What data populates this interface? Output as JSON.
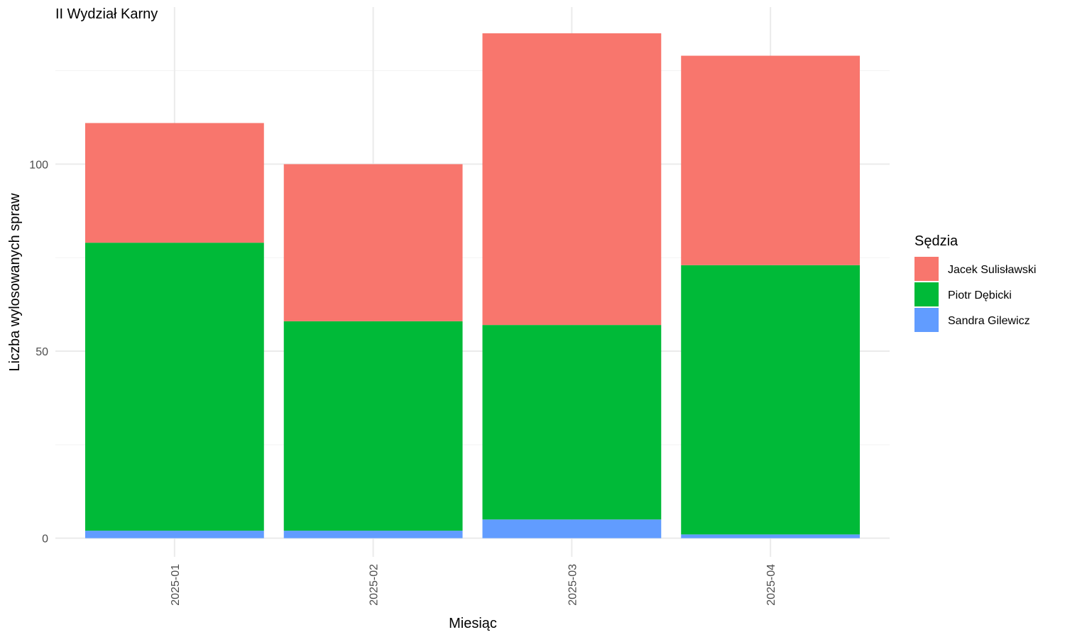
{
  "chart_data": {
    "type": "bar",
    "stacked": true,
    "title": "II Wydział Karny",
    "xlabel": "Miesiąc",
    "ylabel": "Liczba wylosowanych spraw",
    "categories": [
      "2025-01",
      "2025-02",
      "2025-03",
      "2025-04"
    ],
    "series": [
      {
        "name": "Jacek Sulisławski",
        "color": "#F8766D",
        "values": [
          32,
          42,
          78,
          56
        ]
      },
      {
        "name": "Piotr Dębicki",
        "color": "#00BA38",
        "values": [
          77,
          56,
          52,
          72
        ]
      },
      {
        "name": "Sandra Gilewicz",
        "color": "#619CFF",
        "values": [
          2,
          2,
          5,
          1
        ]
      }
    ],
    "stack_order_bottom_to_top": [
      "Sandra Gilewicz",
      "Piotr Dębicki",
      "Jacek Sulisławski"
    ],
    "yticks": [
      0,
      50,
      100
    ],
    "ylim": [
      -5,
      142
    ],
    "grid": true,
    "legend": {
      "title": "Sędzia",
      "position": "right"
    },
    "x_tick_rotation": "vertical"
  }
}
